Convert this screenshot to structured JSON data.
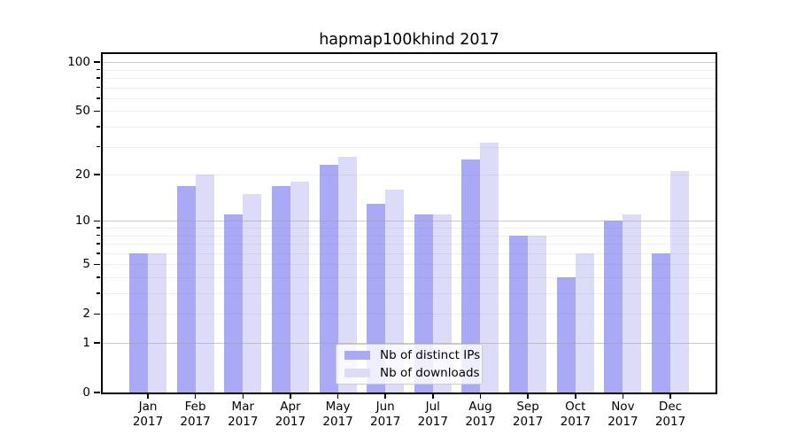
{
  "chart_data": {
    "type": "bar",
    "title": "hapmap100khind 2017",
    "yscale": "log1p",
    "ylim": [
      0,
      100
    ],
    "grid": true,
    "legend_position": "bottom-center",
    "categories": [
      "Jan 2017",
      "Feb 2017",
      "Mar 2017",
      "Apr 2017",
      "May 2017",
      "Jun 2017",
      "Jul 2017",
      "Aug 2017",
      "Sep 2017",
      "Oct 2017",
      "Nov 2017",
      "Dec 2017"
    ],
    "series": [
      {
        "name": "Nb of distinct IPs",
        "color": "#a9a9f6",
        "values": [
          6,
          17,
          11,
          17,
          23,
          13,
          11,
          25,
          8,
          4,
          10,
          6
        ]
      },
      {
        "name": "Nb of downloads",
        "color": "#dcdcf9",
        "values": [
          6,
          20,
          15,
          18,
          26,
          16,
          11,
          32,
          8,
          6,
          11,
          21
        ]
      }
    ],
    "y_ticks_labeled": [
      0,
      1,
      2,
      5,
      10,
      20,
      50,
      100
    ],
    "y_gridlines_major": [
      1,
      10,
      100
    ],
    "y_gridlines_minor": [
      2,
      3,
      4,
      5,
      6,
      7,
      8,
      9,
      20,
      30,
      40,
      50,
      60,
      70,
      80,
      90
    ],
    "colors": {
      "axis": "#000000",
      "grid_major": "#c9c9c9",
      "grid_minor": "#ececec",
      "legend_border": "#cccccc"
    }
  }
}
